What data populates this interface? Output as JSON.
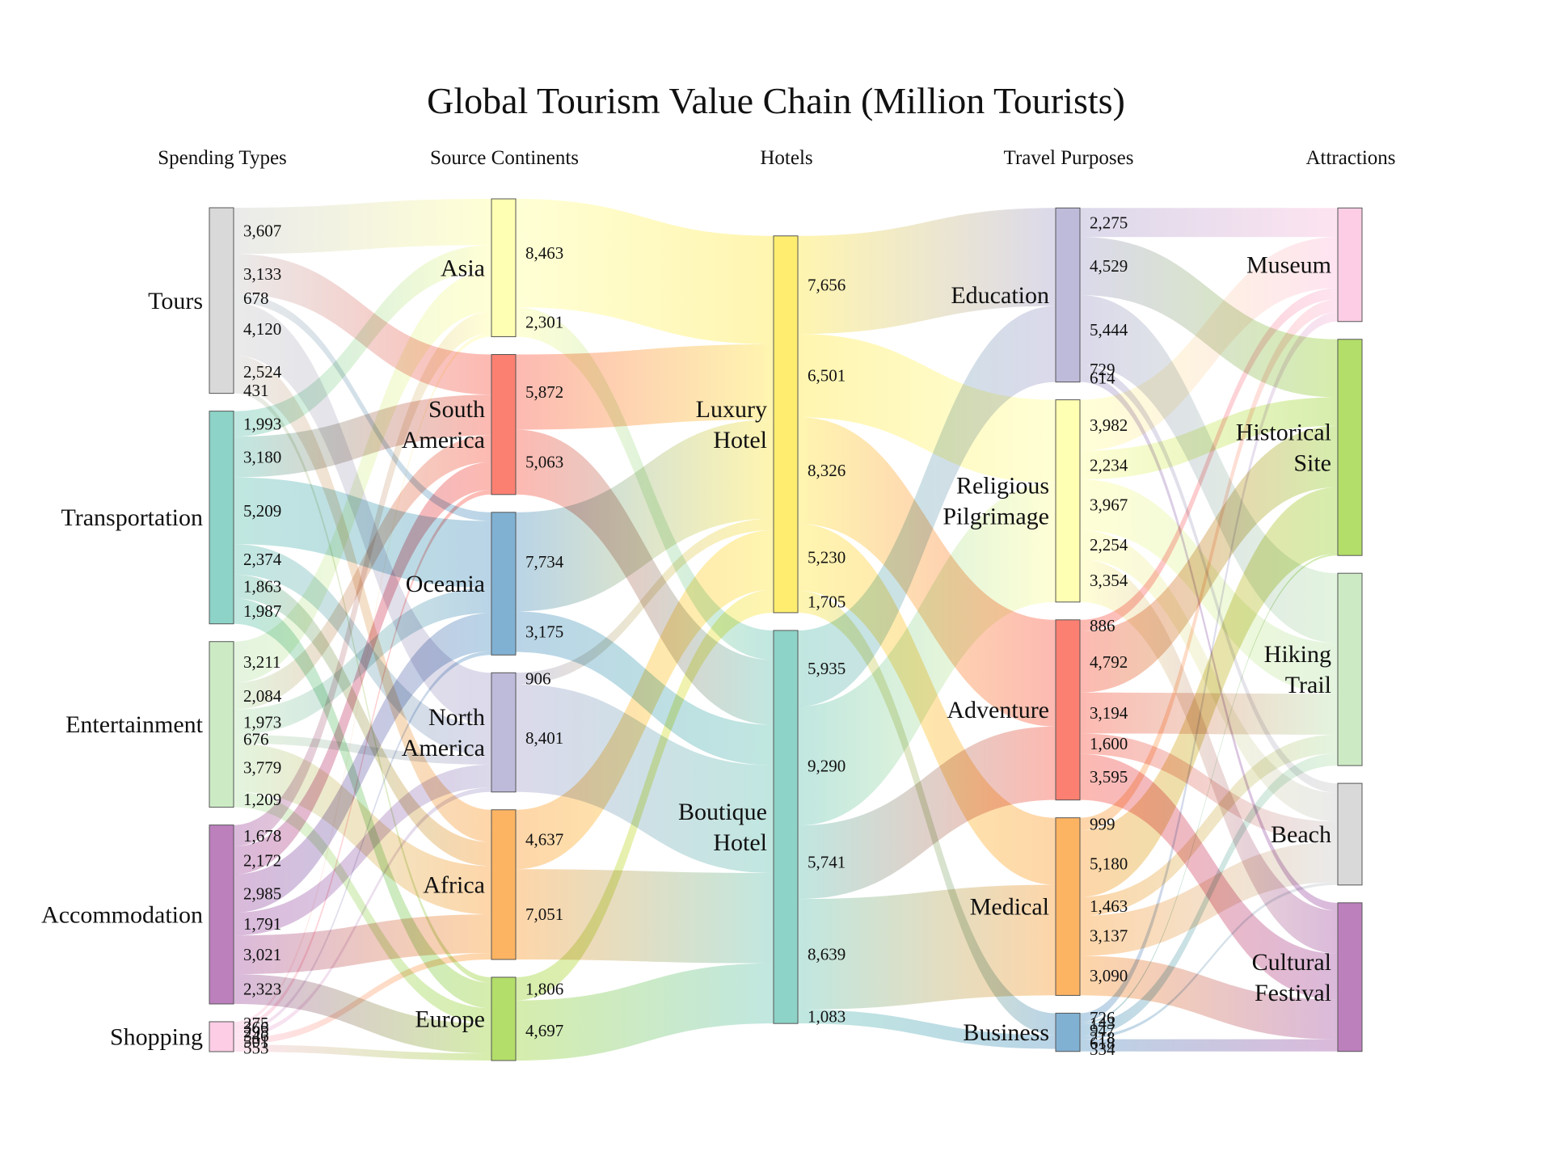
{
  "chart_data": {
    "type": "sankey",
    "title": "Global Tourism Value Chain (Million Tourists)",
    "columns": [
      "Spending Types",
      "Source Continents",
      "Hotels",
      "Travel Purposes",
      "Attractions"
    ],
    "colors": {
      "Tours": "#d9d9d9",
      "Transportation": "#8dd3c7",
      "Entertainment": "#ccebc5",
      "Accommodation": "#bc80bd",
      "Shopping": "#fccde5",
      "Asia": "#ffffb3",
      "South America": "#fb8072",
      "Oceania": "#80b1d3",
      "North America": "#bebada",
      "Africa": "#fdb462",
      "Europe": "#b3de69",
      "Luxury Hotel": "#ffed6f",
      "Boutique Hotel": "#8dd3c7",
      "Education": "#bebada",
      "Religious Pilgrimage": "#ffffb3",
      "Adventure": "#fb8072",
      "Medical": "#fdb462",
      "Business": "#80b1d3",
      "Museum": "#fccde5",
      "Historical Site": "#b3de69",
      "Hiking Trail": "#ccebc5",
      "Beach": "#d9d9d9",
      "Cultural Festival": "#bc80bd"
    },
    "nodes": [
      {
        "name": "Tours",
        "column": 0
      },
      {
        "name": "Transportation",
        "column": 0
      },
      {
        "name": "Entertainment",
        "column": 0
      },
      {
        "name": "Accommodation",
        "column": 0
      },
      {
        "name": "Shopping",
        "column": 0
      },
      {
        "name": "Asia",
        "column": 1
      },
      {
        "name": "South America",
        "column": 1
      },
      {
        "name": "Oceania",
        "column": 1
      },
      {
        "name": "North America",
        "column": 1
      },
      {
        "name": "Africa",
        "column": 1
      },
      {
        "name": "Europe",
        "column": 1
      },
      {
        "name": "Luxury Hotel",
        "column": 2
      },
      {
        "name": "Boutique Hotel",
        "column": 2
      },
      {
        "name": "Education",
        "column": 3
      },
      {
        "name": "Religious Pilgrimage",
        "column": 3
      },
      {
        "name": "Adventure",
        "column": 3
      },
      {
        "name": "Medical",
        "column": 3
      },
      {
        "name": "Business",
        "column": 3
      },
      {
        "name": "Museum",
        "column": 4
      },
      {
        "name": "Historical Site",
        "column": 4
      },
      {
        "name": "Hiking Trail",
        "column": 4
      },
      {
        "name": "Beach",
        "column": 4
      },
      {
        "name": "Cultural Festival",
        "column": 4
      }
    ],
    "links": [
      {
        "source": "Tours",
        "target": "Asia",
        "value": 3607
      },
      {
        "source": "Tours",
        "target": "South America",
        "value": 3133
      },
      {
        "source": "Tours",
        "target": "Oceania",
        "value": 678
      },
      {
        "source": "Tours",
        "target": "North America",
        "value": 4120
      },
      {
        "source": "Tours",
        "target": "Africa",
        "value": 2524
      },
      {
        "source": "Tours",
        "target": "Europe",
        "value": 431
      },
      {
        "source": "Transportation",
        "target": "Asia",
        "value": 1993
      },
      {
        "source": "Transportation",
        "target": "South America",
        "value": 3180
      },
      {
        "source": "Transportation",
        "target": "Oceania",
        "value": 5209
      },
      {
        "source": "Transportation",
        "target": "North America",
        "value": 2374
      },
      {
        "source": "Transportation",
        "target": "Africa",
        "value": 1863
      },
      {
        "source": "Transportation",
        "target": "Europe",
        "value": 1987
      },
      {
        "source": "Entertainment",
        "target": "Asia",
        "value": 3211
      },
      {
        "source": "Entertainment",
        "target": "South America",
        "value": 2084
      },
      {
        "source": "Entertainment",
        "target": "Oceania",
        "value": 1973
      },
      {
        "source": "Entertainment",
        "target": "North America",
        "value": 676
      },
      {
        "source": "Entertainment",
        "target": "Africa",
        "value": 3779
      },
      {
        "source": "Entertainment",
        "target": "Europe",
        "value": 1209
      },
      {
        "source": "Accommodation",
        "target": "Asia",
        "value": 1678
      },
      {
        "source": "Accommodation",
        "target": "South America",
        "value": 2172
      },
      {
        "source": "Accommodation",
        "target": "Oceania",
        "value": 2985
      },
      {
        "source": "Accommodation",
        "target": "North America",
        "value": 1791
      },
      {
        "source": "Accommodation",
        "target": "Africa",
        "value": 3021
      },
      {
        "source": "Accommodation",
        "target": "Europe",
        "value": 2323
      },
      {
        "source": "Shopping",
        "target": "Asia",
        "value": 275
      },
      {
        "source": "Shopping",
        "target": "South America",
        "value": 366
      },
      {
        "source": "Shopping",
        "target": "Oceania",
        "value": 295
      },
      {
        "source": "Shopping",
        "target": "North America",
        "value": 346
      },
      {
        "source": "Shopping",
        "target": "Africa",
        "value": 501
      },
      {
        "source": "Shopping",
        "target": "Europe",
        "value": 553
      },
      {
        "source": "Asia",
        "target": "Luxury Hotel",
        "value": 8463
      },
      {
        "source": "Asia",
        "target": "Boutique Hotel",
        "value": 2301
      },
      {
        "source": "South America",
        "target": "Luxury Hotel",
        "value": 5872
      },
      {
        "source": "South America",
        "target": "Boutique Hotel",
        "value": 5063
      },
      {
        "source": "Oceania",
        "target": "Luxury Hotel",
        "value": 7734
      },
      {
        "source": "Oceania",
        "target": "Boutique Hotel",
        "value": 3175
      },
      {
        "source": "North America",
        "target": "Luxury Hotel",
        "value": 906
      },
      {
        "source": "North America",
        "target": "Boutique Hotel",
        "value": 8401
      },
      {
        "source": "Africa",
        "target": "Luxury Hotel",
        "value": 4637
      },
      {
        "source": "Africa",
        "target": "Boutique Hotel",
        "value": 7051
      },
      {
        "source": "Europe",
        "target": "Luxury Hotel",
        "value": 1806
      },
      {
        "source": "Europe",
        "target": "Boutique Hotel",
        "value": 4697
      },
      {
        "source": "Luxury Hotel",
        "target": "Education",
        "value": 7656
      },
      {
        "source": "Luxury Hotel",
        "target": "Religious Pilgrimage",
        "value": 6501
      },
      {
        "source": "Luxury Hotel",
        "target": "Adventure",
        "value": 8326
      },
      {
        "source": "Luxury Hotel",
        "target": "Medical",
        "value": 5230
      },
      {
        "source": "Luxury Hotel",
        "target": "Business",
        "value": 1705
      },
      {
        "source": "Boutique Hotel",
        "target": "Education",
        "value": 5935
      },
      {
        "source": "Boutique Hotel",
        "target": "Religious Pilgrimage",
        "value": 9290
      },
      {
        "source": "Boutique Hotel",
        "target": "Adventure",
        "value": 5741
      },
      {
        "source": "Boutique Hotel",
        "target": "Medical",
        "value": 8639
      },
      {
        "source": "Boutique Hotel",
        "target": "Business",
        "value": 1083
      },
      {
        "source": "Education",
        "target": "Museum",
        "value": 2275
      },
      {
        "source": "Education",
        "target": "Historical Site",
        "value": 4529
      },
      {
        "source": "Education",
        "target": "Hiking Trail",
        "value": 5444
      },
      {
        "source": "Education",
        "target": "Beach",
        "value": 729
      },
      {
        "source": "Education",
        "target": "Cultural Festival",
        "value": 614
      },
      {
        "source": "Religious Pilgrimage",
        "target": "Museum",
        "value": 3982
      },
      {
        "source": "Religious Pilgrimage",
        "target": "Historical Site",
        "value": 2234
      },
      {
        "source": "Religious Pilgrimage",
        "target": "Hiking Trail",
        "value": 3967
      },
      {
        "source": "Religious Pilgrimage",
        "target": "Beach",
        "value": 2254
      },
      {
        "source": "Religious Pilgrimage",
        "target": "Cultural Festival",
        "value": 3354
      },
      {
        "source": "Adventure",
        "target": "Museum",
        "value": 886
      },
      {
        "source": "Adventure",
        "target": "Historical Site",
        "value": 4792
      },
      {
        "source": "Adventure",
        "target": "Hiking Trail",
        "value": 3194
      },
      {
        "source": "Adventure",
        "target": "Beach",
        "value": 1600
      },
      {
        "source": "Adventure",
        "target": "Cultural Festival",
        "value": 3595
      },
      {
        "source": "Medical",
        "target": "Museum",
        "value": 999
      },
      {
        "source": "Medical",
        "target": "Historical Site",
        "value": 5180
      },
      {
        "source": "Medical",
        "target": "Hiking Trail",
        "value": 1463
      },
      {
        "source": "Medical",
        "target": "Beach",
        "value": 3137
      },
      {
        "source": "Medical",
        "target": "Cultural Festival",
        "value": 3090
      },
      {
        "source": "Business",
        "target": "Museum",
        "value": 726
      },
      {
        "source": "Business",
        "target": "Historical Site",
        "value": 143
      },
      {
        "source": "Business",
        "target": "Hiking Trail",
        "value": 947
      },
      {
        "source": "Business",
        "target": "Beach",
        "value": 218
      },
      {
        "source": "Business",
        "target": "Cultural Festival",
        "value": 618
      },
      {
        "source": "Business",
        "target": "Cultural Festival",
        "value": 334
      }
    ]
  }
}
